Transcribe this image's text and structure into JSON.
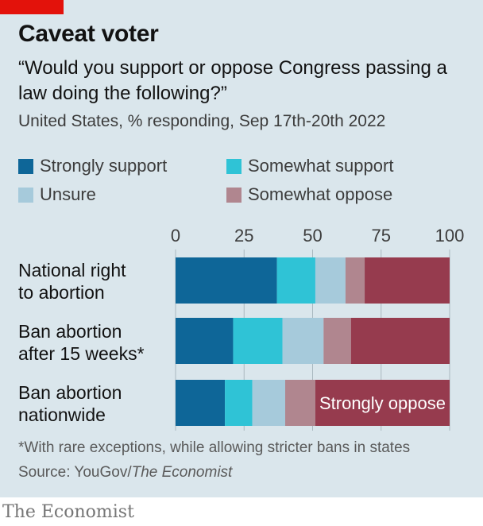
{
  "brand": {
    "title": "Caveat voter",
    "subtitle": "“Would you support or oppose Congress passing a law doing the following?”",
    "subtitle2": "United States, % responding, Sep 17th-20th 2022",
    "note": "*With rare exceptions, while allowing stricter bans in states",
    "source_prefix": "Source: YouGov/",
    "source_publication": "The Economist",
    "logo": "The Economist"
  },
  "legend": [
    {
      "label": "Strongly support",
      "color": "#0e6698"
    },
    {
      "label": "Somewhat support",
      "color": "#2fc3d6"
    },
    {
      "label": "Unsure",
      "color": "#a6cadb"
    },
    {
      "label": "Somewhat oppose",
      "color": "#b0868f"
    }
  ],
  "chart_data": {
    "type": "bar",
    "orientation": "horizontal",
    "stacked": true,
    "xlim": [
      0,
      100
    ],
    "xticks": [
      "0",
      "25",
      "50",
      "75",
      "100"
    ],
    "grid": true,
    "legend_position": "top",
    "categories": [
      "National right\nto abortion",
      "Ban abortion\nafter 15 weeks*",
      "Ban abortion\nnationwide"
    ],
    "series": [
      {
        "name": "Strongly support",
        "color": "#0e6698",
        "values": [
          37,
          21,
          18
        ]
      },
      {
        "name": "Somewhat support",
        "color": "#2fc3d6",
        "values": [
          14,
          18,
          10
        ]
      },
      {
        "name": "Unsure",
        "color": "#a6cadb",
        "values": [
          11,
          15,
          12
        ]
      },
      {
        "name": "Somewhat oppose",
        "color": "#b0868f",
        "values": [
          7,
          10,
          11
        ]
      },
      {
        "name": "Strongly oppose",
        "color": "#963b4e",
        "values": [
          31,
          36,
          49
        ]
      }
    ],
    "annotations": [
      {
        "text": "Strongly oppose",
        "category_index": 2,
        "series_index": 4
      }
    ]
  }
}
